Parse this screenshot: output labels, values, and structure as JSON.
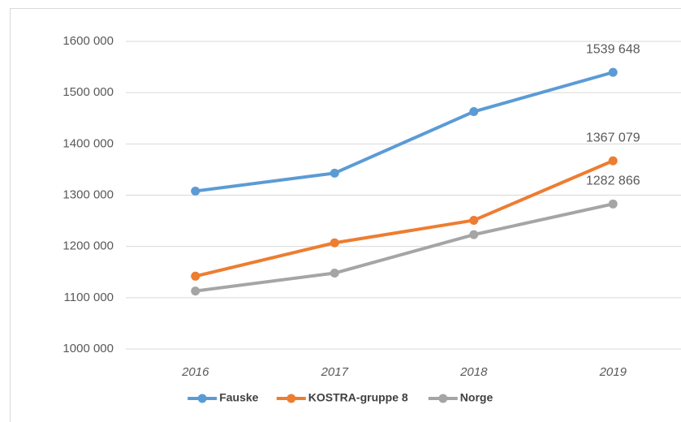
{
  "chart_data": {
    "type": "line",
    "categories": [
      "2016",
      "2017",
      "2018",
      "2019"
    ],
    "series": [
      {
        "name": "Fauske",
        "color": "#5b9bd5",
        "values": [
          1308000,
          1343000,
          1463000,
          1539648
        ],
        "value_labels": [
          null,
          null,
          null,
          "1539 648"
        ]
      },
      {
        "name": "KOSTRA-gruppe 8",
        "color": "#ed7d31",
        "values": [
          1142000,
          1207000,
          1251000,
          1367079
        ],
        "value_labels": [
          null,
          null,
          null,
          "1367 079"
        ]
      },
      {
        "name": "Norge",
        "color": "#a5a5a5",
        "values": [
          1113000,
          1148000,
          1223000,
          1282866
        ],
        "value_labels": [
          null,
          null,
          null,
          "1282 866"
        ]
      }
    ],
    "ylim": [
      1000000,
      1600000
    ],
    "yticks": [
      {
        "value": 1000000,
        "label": "1000 000"
      },
      {
        "value": 1100000,
        "label": "1100 000"
      },
      {
        "value": 1200000,
        "label": "1200 000"
      },
      {
        "value": 1300000,
        "label": "1300 000"
      },
      {
        "value": 1400000,
        "label": "1400 000"
      },
      {
        "value": 1500000,
        "label": "1500 000"
      },
      {
        "value": 1600000,
        "label": "1600 000"
      }
    ],
    "grid": true,
    "legend": "bottom"
  }
}
